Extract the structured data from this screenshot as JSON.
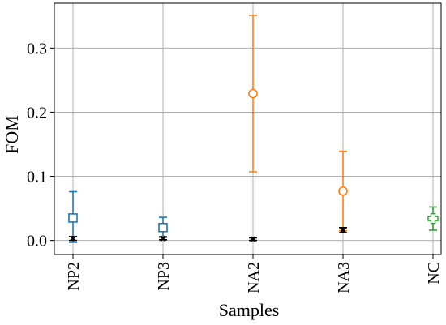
{
  "chart_data": {
    "type": "scatter",
    "xlabel": "Samples",
    "ylabel": "FOM",
    "categories": [
      "NP2",
      "NP3",
      "NA2",
      "NA3",
      "NC"
    ],
    "ylim": [
      -0.022,
      0.37
    ],
    "yticks": [
      0.0,
      0.1,
      0.2,
      0.3
    ],
    "ytick_labels": [
      "0.0",
      "0.1",
      "0.2",
      "0.3"
    ],
    "grid": true,
    "series": [
      {
        "marker": "square",
        "color": "#1f77b4",
        "points": [
          {
            "category": "NP2",
            "y": 0.035,
            "yerr_low": 0.038,
            "yerr_high": 0.041
          },
          {
            "category": "NP3",
            "y": 0.02,
            "yerr_low": 0.014,
            "yerr_high": 0.016
          }
        ]
      },
      {
        "marker": "circle",
        "color": "#ff7f0e",
        "points": [
          {
            "category": "NA2",
            "y": 0.229,
            "yerr_low": 0.122,
            "yerr_high": 0.122
          },
          {
            "category": "NA3",
            "y": 0.077,
            "yerr_low": 0.062,
            "yerr_high": 0.062
          }
        ]
      },
      {
        "marker": "plus",
        "color": "#2ca02c",
        "points": [
          {
            "category": "NC",
            "y": 0.034,
            "yerr_low": 0.018,
            "yerr_high": 0.018
          }
        ]
      },
      {
        "marker": "x",
        "color": "#000000",
        "points": [
          {
            "category": "NP2",
            "y": 0.003,
            "yerr_low": 0.003,
            "yerr_high": 0.003
          },
          {
            "category": "NP3",
            "y": 0.003,
            "yerr_low": 0.002,
            "yerr_high": 0.002
          },
          {
            "category": "NA2",
            "y": 0.002,
            "yerr_low": 0.002,
            "yerr_high": 0.002
          },
          {
            "category": "NA3",
            "y": 0.016,
            "yerr_low": 0.004,
            "yerr_high": 0.004
          }
        ]
      }
    ]
  }
}
